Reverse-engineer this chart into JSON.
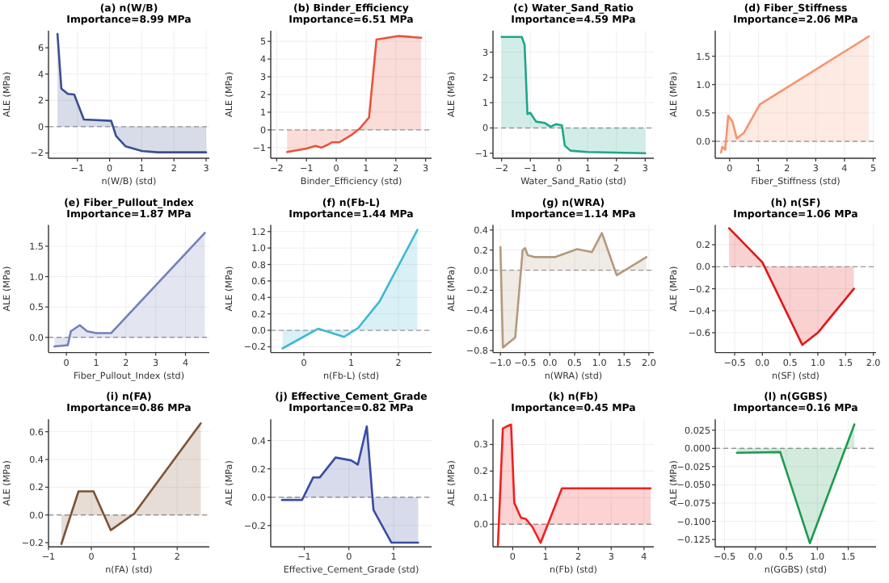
{
  "chart_data": [
    {
      "type": "area",
      "title": "(a) n(W/B)",
      "subtitle": "Importance=8.99 MPa",
      "xlabel": "n(W/B) (std)",
      "ylabel": "ALE (MPa)",
      "x": [
        -1.62,
        -1.5,
        -1.3,
        -1.1,
        -0.8,
        0.05,
        0.2,
        0.5,
        1,
        1.5,
        3
      ],
      "series": [
        {
          "color": "#3a4f8f",
          "values": [
            7.05,
            2.9,
            2.5,
            2.45,
            0.55,
            0.45,
            -0.7,
            -1.5,
            -1.85,
            -1.95,
            -1.95
          ]
        }
      ],
      "xlim": [
        -1.9,
        3.1
      ],
      "ylim": [
        -2.4,
        7.3
      ],
      "xticks": [
        {
          "value": -1,
          "label": "−1"
        },
        0,
        1,
        2,
        3
      ],
      "yticks": [
        {
          "value": -2,
          "label": "−2"
        },
        0,
        2,
        4,
        6
      ],
      "grid": true,
      "ref_lines": [
        {
          "axis": "y",
          "value": 0,
          "color": "#999999",
          "line_style": "dashed"
        }
      ]
    },
    {
      "type": "area",
      "title": "(b) Binder_Efficiency",
      "subtitle": "Importance=6.51 MPa",
      "xlabel": "Binder_Efficiency (std)",
      "ylabel": "ALE (MPa)",
      "x": [
        -1.65,
        -1,
        -0.7,
        -0.5,
        -0.3,
        -0.15,
        0.1,
        0.5,
        0.8,
        1.1,
        1.35,
        2.1,
        2.85
      ],
      "series": [
        {
          "color": "#e8533a",
          "values": [
            -1.25,
            -1.05,
            -0.9,
            -1.0,
            -0.85,
            -0.7,
            -0.7,
            -0.3,
            0.1,
            0.7,
            5.1,
            5.3,
            5.2
          ]
        }
      ],
      "xlim": [
        -2.2,
        3.2
      ],
      "ylim": [
        -1.6,
        5.6
      ],
      "xticks": [
        {
          "value": -2,
          "label": "−2"
        },
        {
          "value": -1,
          "label": "−1"
        },
        0,
        1,
        2,
        3
      ],
      "yticks": [
        {
          "value": -1,
          "label": "−1"
        },
        0,
        1,
        2,
        3,
        4,
        5
      ],
      "grid": true,
      "ref_lines": [
        {
          "axis": "y",
          "value": 0,
          "color": "#999999",
          "line_style": "dashed"
        }
      ]
    },
    {
      "type": "area",
      "title": "(c) Water_Sand_Ratio",
      "subtitle": "Importance=4.59 MPa",
      "xlabel": "Water_Sand_Ratio (std)",
      "ylabel": "ALE (MPa)",
      "x": [
        -2,
        -1.3,
        -1.2,
        -1.1,
        -1,
        -0.8,
        -0.5,
        -0.3,
        -0.1,
        0.1,
        0.2,
        0.4,
        1,
        3
      ],
      "series": [
        {
          "color": "#1fa58a",
          "values": [
            3.6,
            3.6,
            3.3,
            0.55,
            0.6,
            0.25,
            0.2,
            0.05,
            0.15,
            0.1,
            -0.7,
            -0.9,
            -0.95,
            -1
          ]
        }
      ],
      "xlim": [
        -2.3,
        3.3
      ],
      "ylim": [
        -1.2,
        3.85
      ],
      "xticks": [
        {
          "value": -2,
          "label": "−2"
        },
        {
          "value": -1,
          "label": "−1"
        },
        0,
        1,
        2,
        3
      ],
      "yticks": [
        {
          "value": -1,
          "label": "−1"
        },
        0,
        1,
        2,
        3
      ],
      "grid": true,
      "ref_lines": [
        {
          "axis": "y",
          "value": 0,
          "color": "#999999",
          "line_style": "dashed"
        }
      ]
    },
    {
      "type": "area",
      "title": "(d) Fiber_Stiffness",
      "subtitle": "Importance=2.06 MPa",
      "xlabel": "Fiber_Stiffness (std)",
      "ylabel": "ALE (MPa)",
      "x": [
        -0.3,
        -0.25,
        -0.15,
        -0.05,
        0.1,
        0.25,
        0.5,
        1.05,
        4.85
      ],
      "series": [
        {
          "color": "#f4956f",
          "values": [
            -0.2,
            -0.1,
            -0.15,
            0.45,
            0.35,
            0.05,
            0.15,
            0.65,
            1.85
          ]
        }
      ],
      "xlim": [
        -0.5,
        5.1
      ],
      "ylim": [
        -0.3,
        1.95
      ],
      "xticks": [
        0,
        1,
        2,
        3,
        4,
        5
      ],
      "yticks": [
        {
          "value": 0,
          "label": "0.0"
        },
        {
          "value": 0.5,
          "label": "0.5"
        },
        {
          "value": 1,
          "label": "1.0"
        },
        {
          "value": 1.5,
          "label": "1.5"
        }
      ],
      "grid": true,
      "ref_lines": [
        {
          "axis": "y",
          "value": 0,
          "color": "#999999",
          "line_style": "dashed"
        }
      ]
    },
    {
      "type": "area",
      "title": "(e) Fiber_Pullout_Index",
      "subtitle": "Importance=1.87 MPa",
      "xlabel": "Fiber_Pullout_Index (std)",
      "ylabel": "ALE (MPa)",
      "x": [
        -0.4,
        0.05,
        0.15,
        0.45,
        0.7,
        1,
        1.5,
        4.65
      ],
      "series": [
        {
          "color": "#7380b8",
          "values": [
            -0.15,
            -0.13,
            0.1,
            0.2,
            0.1,
            0.07,
            0.07,
            1.72
          ]
        }
      ],
      "xlim": [
        -0.6,
        4.8
      ],
      "ylim": [
        -0.25,
        1.85
      ],
      "xticks": [
        0,
        1,
        2,
        3,
        4
      ],
      "yticks": [
        {
          "value": 0,
          "label": "0.0"
        },
        {
          "value": 0.5,
          "label": "0.5"
        },
        {
          "value": 1,
          "label": "1.0"
        },
        {
          "value": 1.5,
          "label": "1.5"
        }
      ],
      "grid": true,
      "ref_lines": [
        {
          "axis": "y",
          "value": 0,
          "color": "#999999",
          "line_style": "dashed"
        }
      ]
    },
    {
      "type": "area",
      "title": "(f) n(Fb-L)",
      "subtitle": "Importance=1.44 MPa",
      "xlabel": "n(Fb-L) (std)",
      "ylabel": "ALE (MPa)",
      "x": [
        -0.45,
        0.3,
        0.85,
        1.15,
        1.6,
        2.4
      ],
      "series": [
        {
          "color": "#3fb8d3",
          "values": [
            -0.22,
            0.02,
            -0.08,
            0.03,
            0.35,
            1.22
          ]
        }
      ],
      "xlim": [
        -0.7,
        2.7
      ],
      "ylim": [
        -0.27,
        1.28
      ],
      "xticks": [
        0,
        1,
        2
      ],
      "yticks": [
        {
          "value": -0.2,
          "label": "−0.2"
        },
        {
          "value": 0,
          "label": "0.0"
        },
        {
          "value": 0.2,
          "label": "0.2"
        },
        {
          "value": 0.4,
          "label": "0.4"
        },
        {
          "value": 0.6,
          "label": "0.6"
        },
        {
          "value": 0.8,
          "label": "0.8"
        },
        {
          "value": 1,
          "label": "1.0"
        },
        {
          "value": 1.2,
          "label": "1.2"
        }
      ],
      "grid": true,
      "ref_lines": [
        {
          "axis": "y",
          "value": 0,
          "color": "#999999",
          "line_style": "dashed"
        }
      ]
    },
    {
      "type": "area",
      "title": "(g) n(WRA)",
      "subtitle": "Importance=1.14 MPa",
      "xlabel": "n(WRA) (std)",
      "ylabel": "ALE (MPa)",
      "x": [
        -1.0,
        -0.95,
        -0.7,
        -0.55,
        -0.5,
        -0.45,
        -0.3,
        0.1,
        0.55,
        0.85,
        1.05,
        1.35,
        1.95
      ],
      "series": [
        {
          "color": "#b49a7c",
          "values": [
            0.23,
            -0.77,
            -0.67,
            0.2,
            0.22,
            0.15,
            0.13,
            0.13,
            0.21,
            0.18,
            0.37,
            -0.05,
            0.13
          ]
        }
      ],
      "xlim": [
        -1.15,
        2.1
      ],
      "ylim": [
        -0.82,
        0.45
      ],
      "xticks": [
        {
          "value": -1,
          "label": "−1.0"
        },
        {
          "value": -0.5,
          "label": "−0.5"
        },
        {
          "value": 0,
          "label": "0.0"
        },
        {
          "value": 0.5,
          "label": "0.5"
        },
        {
          "value": 1,
          "label": "1.0"
        },
        {
          "value": 1.5,
          "label": "1.5"
        },
        {
          "value": 2,
          "label": "2.0"
        }
      ],
      "yticks": [
        {
          "value": -0.8,
          "label": "−0.8"
        },
        {
          "value": -0.6,
          "label": "−0.6"
        },
        {
          "value": -0.4,
          "label": "−0.4"
        },
        {
          "value": -0.2,
          "label": "−0.2"
        },
        {
          "value": 0,
          "label": "0.0"
        },
        {
          "value": 0.2,
          "label": "0.2"
        },
        {
          "value": 0.4,
          "label": "0.4"
        }
      ],
      "grid": true,
      "ref_lines": [
        {
          "axis": "y",
          "value": 0,
          "color": "#999999",
          "line_style": "dashed"
        }
      ]
    },
    {
      "type": "area",
      "title": "(h) n(SF)",
      "subtitle": "Importance=1.06 MPa",
      "xlabel": "n(SF) (std)",
      "ylabel": "ALE (MPa)",
      "x": [
        -0.6,
        0,
        0.72,
        1,
        1.65
      ],
      "series": [
        {
          "color": "#e01818",
          "values": [
            0.35,
            0.04,
            -0.71,
            -0.6,
            -0.2
          ]
        }
      ],
      "xlim": [
        -0.85,
        2.05
      ],
      "ylim": [
        -0.78,
        0.38
      ],
      "xticks": [
        {
          "value": -0.5,
          "label": "−0.5"
        },
        {
          "value": 0,
          "label": "0.0"
        },
        {
          "value": 0.5,
          "label": "0.5"
        },
        {
          "value": 1,
          "label": "1.0"
        },
        {
          "value": 1.5,
          "label": "1.5"
        },
        {
          "value": 2,
          "label": "2.0"
        }
      ],
      "yticks": [
        {
          "value": -0.6,
          "label": "−0.6"
        },
        {
          "value": -0.4,
          "label": "−0.4"
        },
        {
          "value": -0.2,
          "label": "−0.2"
        },
        {
          "value": 0,
          "label": "0.0"
        },
        {
          "value": 0.2,
          "label": "0.2"
        }
      ],
      "grid": true,
      "ref_lines": [
        {
          "axis": "y",
          "value": 0,
          "color": "#999999",
          "line_style": "dashed"
        }
      ]
    },
    {
      "type": "area",
      "title": "(i) n(FA)",
      "subtitle": "Importance=0.86 MPa",
      "xlabel": "n(FA) (std)",
      "ylabel": "ALE (MPa)",
      "x": [
        -0.7,
        -0.3,
        0.05,
        0.45,
        1,
        2.55
      ],
      "series": [
        {
          "color": "#7b5334",
          "values": [
            -0.21,
            0.17,
            0.17,
            -0.11,
            0.01,
            0.66
          ]
        }
      ],
      "xlim": [
        -1.0,
        2.75
      ],
      "ylim": [
        -0.23,
        0.69
      ],
      "xticks": [
        {
          "value": -1,
          "label": "−1"
        },
        0,
        1,
        2
      ],
      "yticks": [
        {
          "value": -0.2,
          "label": "−0.2"
        },
        {
          "value": 0,
          "label": "0.0"
        },
        {
          "value": 0.2,
          "label": "0.2"
        },
        {
          "value": 0.4,
          "label": "0.4"
        },
        {
          "value": 0.6,
          "label": "0.6"
        }
      ],
      "grid": true,
      "ref_lines": [
        {
          "axis": "y",
          "value": 0,
          "color": "#999999",
          "line_style": "dashed"
        }
      ]
    },
    {
      "type": "area",
      "title": "(j) Effective_Cement_Grade",
      "subtitle": "Importance=0.82 MPa",
      "xlabel": "Effective_Cement_Grade (std)",
      "ylabel": "ALE (MPa)",
      "x": [
        -1.5,
        -1.05,
        -0.8,
        -0.65,
        -0.3,
        0.05,
        0.2,
        0.4,
        0.55,
        0.95,
        1.55
      ],
      "series": [
        {
          "color": "#3a4ca0",
          "values": [
            -0.02,
            -0.02,
            0.14,
            0.14,
            0.28,
            0.26,
            0.23,
            0.5,
            -0.09,
            -0.32,
            -0.32
          ]
        }
      ],
      "xlim": [
        -1.75,
        1.85
      ],
      "ylim": [
        -0.35,
        0.55
      ],
      "xticks": [
        {
          "value": -1,
          "label": "−1"
        },
        0,
        1
      ],
      "yticks": [
        {
          "value": -0.2,
          "label": "−0.2"
        },
        {
          "value": 0,
          "label": "0.0"
        },
        {
          "value": 0.2,
          "label": "0.2"
        },
        {
          "value": 0.4,
          "label": "0.4"
        }
      ],
      "grid": true,
      "ref_lines": [
        {
          "axis": "y",
          "value": 0,
          "color": "#999999",
          "line_style": "dashed"
        }
      ]
    },
    {
      "type": "area",
      "title": "(k) n(Fb)",
      "subtitle": "Importance=0.45 MPa",
      "xlabel": "n(Fb) (std)",
      "ylabel": "ALE (MPa)",
      "x": [
        -0.45,
        -0.3,
        -0.15,
        -0.05,
        0.05,
        0.25,
        0.4,
        0.6,
        0.85,
        1.5,
        4.2
      ],
      "series": [
        {
          "color": "#f21f1f",
          "values": [
            -0.08,
            0.36,
            0.37,
            0.375,
            0.08,
            0.025,
            0.02,
            -0.01,
            -0.07,
            0.135,
            0.135
          ]
        }
      ],
      "xlim": [
        -0.6,
        4.3
      ],
      "ylim": [
        -0.085,
        0.395
      ],
      "xticks": [
        0,
        1,
        2,
        3,
        4
      ],
      "yticks": [
        {
          "value": 0,
          "label": "0.0"
        },
        {
          "value": 0.1,
          "label": "0.1"
        },
        {
          "value": 0.2,
          "label": "0.2"
        },
        {
          "value": 0.3,
          "label": "0.3"
        }
      ],
      "grid": true,
      "ref_lines": [
        {
          "axis": "y",
          "value": 0,
          "color": "#999999",
          "line_style": "dashed"
        }
      ]
    },
    {
      "type": "area",
      "title": "(l) n(GGBS)",
      "subtitle": "Importance=0.16 MPa",
      "xlabel": "n(GGBS) (std)",
      "ylabel": "ALE (MPa)",
      "x": [
        -0.3,
        0.4,
        0.88,
        1.6
      ],
      "series": [
        {
          "color": "#1f9a50",
          "values": [
            -0.006,
            -0.005,
            -0.13,
            0.033
          ]
        }
      ],
      "xlim": [
        -0.65,
        1.95
      ],
      "ylim": [
        -0.135,
        0.04
      ],
      "xticks": [
        {
          "value": -0.5,
          "label": "−0.5"
        },
        {
          "value": 0,
          "label": "0.0"
        },
        {
          "value": 0.5,
          "label": "0.5"
        },
        {
          "value": 1,
          "label": "1.0"
        },
        {
          "value": 1.5,
          "label": "1.5"
        }
      ],
      "yticks": [
        {
          "value": -0.125,
          "label": "−0.125"
        },
        {
          "value": -0.1,
          "label": "−0.100"
        },
        {
          "value": -0.075,
          "label": "−0.075"
        },
        {
          "value": -0.05,
          "label": "−0.050"
        },
        {
          "value": -0.025,
          "label": "−0.025"
        },
        {
          "value": 0,
          "label": "0.000"
        },
        {
          "value": 0.025,
          "label": "0.025"
        }
      ],
      "grid": true,
      "ref_lines": [
        {
          "axis": "y",
          "value": 0,
          "color": "#999999",
          "line_style": "dashed"
        }
      ]
    }
  ]
}
